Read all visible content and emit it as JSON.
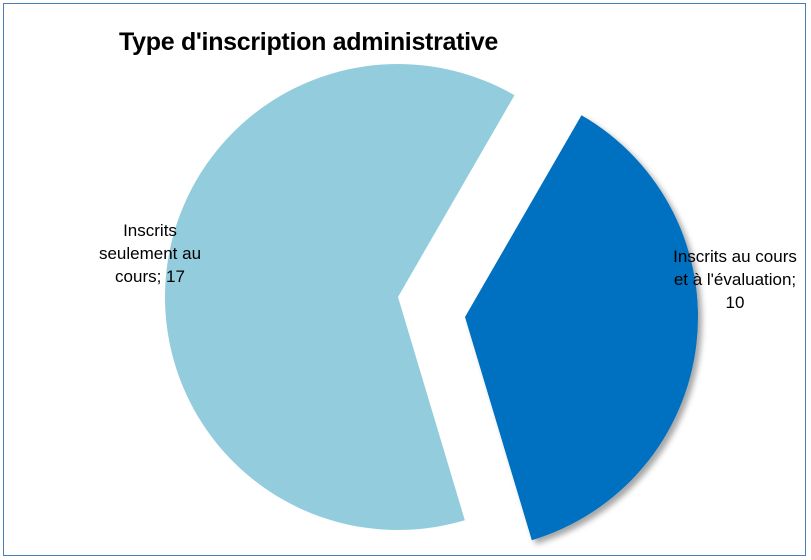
{
  "chart_data": {
    "type": "pie",
    "title": "Type d'inscription administrative",
    "slices": [
      {
        "category": "Inscrits au cours et à l'évaluation",
        "value": 10,
        "color": "#0070c0",
        "label_lines": [
          "Inscrits au cours",
          "et à l'évaluation;",
          "10"
        ]
      },
      {
        "category": "Inscrits seulement au cours",
        "value": 17,
        "color": "#93cddd",
        "label_lines": [
          "Inscrits",
          "seulement au",
          "cours; 17"
        ]
      }
    ],
    "exploded": true,
    "legend": "none",
    "border_color": "#4a7ebb"
  }
}
